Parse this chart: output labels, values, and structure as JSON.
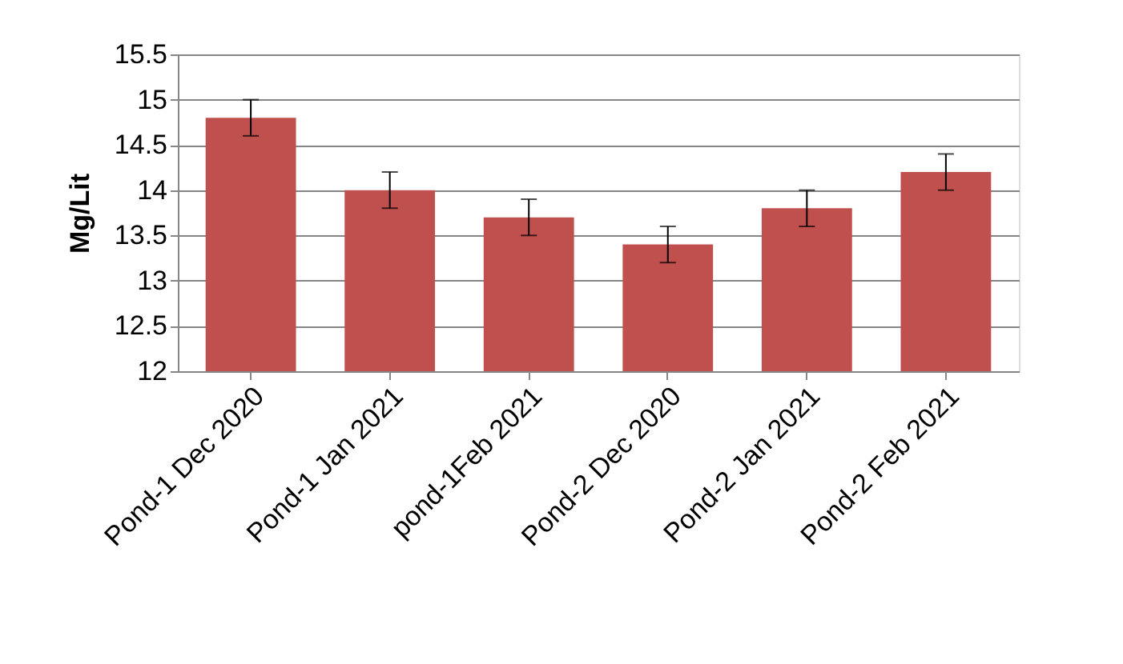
{
  "chart_data": {
    "type": "bar",
    "ylabel": "Mg/Lit",
    "categories": [
      "Pond-1  Dec 2020",
      "Pond-1 Jan 2021",
      "pond-1Feb 2021",
      "Pond-2 Dec 2020",
      "Pond-2 Jan 2021",
      "Pond-2  Feb 2021"
    ],
    "values": [
      14.8,
      14.0,
      13.7,
      13.4,
      13.8,
      14.2
    ],
    "errors": [
      0.2,
      0.2,
      0.2,
      0.2,
      0.2,
      0.2
    ],
    "color": "#c0504d",
    "ylim": [
      12,
      15.5
    ],
    "yticks": [
      12,
      12.5,
      13,
      13.5,
      14,
      14.5,
      15,
      15.5
    ],
    "grid": "y"
  }
}
